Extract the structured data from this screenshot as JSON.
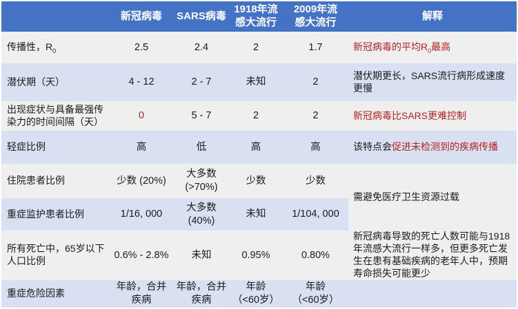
{
  "palette": {
    "header_blue": "#4472c4",
    "row_light_gray": "#efefef",
    "row_lavender": "#d9e0f1",
    "emphasis_red": "#b22222",
    "text_black": "#1a1a1a",
    "header_text": "#ffffff"
  },
  "chart_data": {
    "type": "table",
    "columns": [
      "",
      "新冠病毒",
      "SARS病毒",
      "1918年流\n感大流行",
      "2009年流\n感大流行",
      "解释"
    ],
    "rows": [
      {
        "label": "传播性，R",
        "label_sub": "0",
        "values": [
          "2.5",
          "2.4",
          "2",
          "1.7"
        ],
        "exp_red_pre": "新冠病毒的平均R",
        "exp_red_sub": "0",
        "exp_red_post": "最高"
      },
      {
        "label": "潜伏期（天）",
        "values": [
          "4 - 12",
          "2 - 7",
          "未知",
          "2"
        ],
        "exp": "潜伏期更长，SARS流行病形成速度更慢"
      },
      {
        "label": "出现症状与具备最强传染力的时间间隔（天）",
        "values": [
          "0",
          "5 - 7",
          "2",
          "2"
        ],
        "exp_red": "新冠病毒比SARS更难控制"
      },
      {
        "label": "轻症比例",
        "values": [
          "高",
          "低",
          "高",
          "高"
        ],
        "exp": "该特点会",
        "exp_red": "促进未检测到的疾病传播"
      },
      {
        "label": "住院患者比例",
        "values": [
          "少数 (20%)",
          "大多数\n(>70%)",
          "少数",
          "少数"
        ],
        "exp_merged": "需避免医疗卫生资源过载"
      },
      {
        "label": "重症监护患者比例",
        "values": [
          "1/16, 000",
          "大多数\n(40%)",
          "未知",
          "1/104, 000"
        ]
      },
      {
        "label": "所有死亡中，65岁以下人口比例",
        "values": [
          "0.6% - 2.8%",
          "未知",
          "0.95%",
          "0.80%"
        ],
        "exp": "新冠病毒导致的死亡人数可能与1918年流感大流行一样多，但更多死亡发生在患有基础疾病的老年人中，预期寿命损失可能更少"
      },
      {
        "label": "重症危险因素",
        "values": [
          "年龄，合并\n疾病",
          "年龄，合并\n疾病",
          "年龄\n（<60岁）",
          "年龄\n（<60岁）"
        ],
        "exp": ""
      }
    ]
  }
}
